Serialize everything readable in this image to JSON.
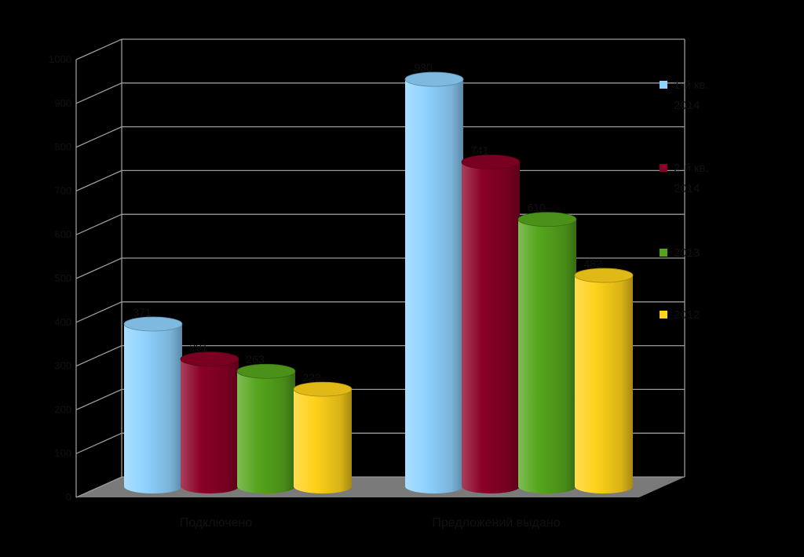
{
  "chart_data": {
    "type": "bar",
    "style": "3d-cylinder",
    "categories": [
      "Подключено",
      "Предложений выдано"
    ],
    "series": [
      {
        "name": "1-й кв.\n2014",
        "values": [
          371,
          930
        ],
        "color": "#8fd3ff"
      },
      {
        "name": "2-й кв.\n2014",
        "values": [
          291,
          741
        ],
        "color": "#8a0026"
      },
      {
        "name": "2013",
        "values": [
          263,
          610
        ],
        "color": "#55a51c"
      },
      {
        "name": "2012",
        "values": [
          222,
          482
        ],
        "color": "#ffd21a"
      }
    ],
    "ylim": [
      0,
      1000
    ],
    "yticks": [
      0,
      100,
      200,
      300,
      400,
      500,
      600,
      700,
      800,
      900,
      1000
    ],
    "grid": true,
    "legend": "right",
    "background": "#000000",
    "floor_color": "#7a7a7a",
    "text_color": "#111111"
  }
}
